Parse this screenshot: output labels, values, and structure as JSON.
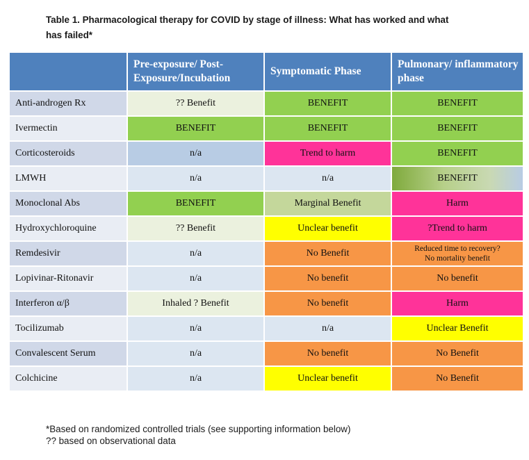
{
  "title_line1": "Table 1. Pharmacological therapy for COVID by stage of illness: What has worked and what",
  "title_line2": "has failed*",
  "colors": {
    "header": "#4f81bd",
    "label_dark": "#d0d8e8",
    "label_light": "#e9edf4",
    "benefit_green": "#92d050",
    "pale_green": "#ebf1de",
    "light_green": "#c4d79b",
    "harm_pink": "#ff3399",
    "yellow": "#ffff00",
    "orange": "#f79646",
    "blue": "#b8cce4",
    "light_blue": "#dce6f1"
  },
  "table": {
    "headers": [
      "",
      "Pre-exposure/ Post-Exposure/Incubation",
      "Symptomatic Phase",
      "Pulmonary/ inflammatory phase"
    ],
    "rows": [
      {
        "drug": "Anti-androgen Rx",
        "cells": [
          {
            "text": "?? Benefit",
            "bg": "#ebf1de"
          },
          {
            "text": "BENEFIT",
            "bg": "#92d050"
          },
          {
            "text": "BENEFIT",
            "bg": "#92d050"
          }
        ]
      },
      {
        "drug": "Ivermectin",
        "cells": [
          {
            "text": "BENEFIT",
            "bg": "#92d050"
          },
          {
            "text": "BENEFIT",
            "bg": "#92d050"
          },
          {
            "text": "BENEFIT",
            "bg": "#92d050"
          }
        ]
      },
      {
        "drug": "Corticosteroids",
        "cells": [
          {
            "text": "n/a",
            "bg": "#b8cce4"
          },
          {
            "text": "Trend to harm",
            "bg": "#ff3399"
          },
          {
            "text": "BENEFIT",
            "bg": "#92d050"
          }
        ]
      },
      {
        "drug": "LMWH",
        "cells": [
          {
            "text": "n/a",
            "bg": "#dce6f1"
          },
          {
            "text": "n/a",
            "bg": "#dce6f1"
          },
          {
            "text": "BENEFIT",
            "bg": "linear-gradient(to right, #7faa3c 0%, #b7d08a 40%, #c9d9b3 75%, #b8cce4 100%)"
          }
        ]
      },
      {
        "drug": "Monoclonal Abs",
        "cells": [
          {
            "text": "BENEFIT",
            "bg": "#92d050"
          },
          {
            "text": "Marginal Benefit",
            "bg": "#c4d79b"
          },
          {
            "text": "Harm",
            "bg": "#ff3399"
          }
        ]
      },
      {
        "drug": "Hydroxychloroquine",
        "cells": [
          {
            "text": "?? Benefit",
            "bg": "#ebf1de"
          },
          {
            "text": "Unclear benefit",
            "bg": "#ffff00"
          },
          {
            "text": "?Trend to harm",
            "bg": "#ff3399"
          }
        ]
      },
      {
        "drug": "Remdesivir",
        "cells": [
          {
            "text": "n/a",
            "bg": "#dce6f1"
          },
          {
            "text": "No Benefit",
            "bg": "#f79646"
          },
          {
            "text": "Reduced time to recovery?",
            "text2": "No mortality benefit",
            "bg": "#f79646"
          }
        ]
      },
      {
        "drug": "Lopivinar-Ritonavir",
        "cells": [
          {
            "text": "n/a",
            "bg": "#dce6f1"
          },
          {
            "text": "No benefit",
            "bg": "#f79646"
          },
          {
            "text": "No benefit",
            "bg": "#f79646"
          }
        ]
      },
      {
        "drug": "Interferon α/β",
        "cells": [
          {
            "text": "Inhaled ? Benefit",
            "bg": "#ebf1de"
          },
          {
            "text": "No benefit",
            "bg": "#f79646"
          },
          {
            "text": "Harm",
            "bg": "#ff3399"
          }
        ]
      },
      {
        "drug": "Tocilizumab",
        "cells": [
          {
            "text": "n/a",
            "bg": "#dce6f1"
          },
          {
            "text": "n/a",
            "bg": "#dce6f1"
          },
          {
            "text": "Unclear Benefit",
            "bg": "#ffff00"
          }
        ]
      },
      {
        "drug": "Convalescent Serum",
        "cells": [
          {
            "text": "n/a",
            "bg": "#dce6f1"
          },
          {
            "text": "No benefit",
            "bg": "#f79646"
          },
          {
            "text": "No Benefit",
            "bg": "#f79646"
          }
        ]
      },
      {
        "drug": "Colchicine",
        "cells": [
          {
            "text": "n/a",
            "bg": "#dce6f1"
          },
          {
            "text": "Unclear benefit",
            "bg": "#ffff00"
          },
          {
            "text": "No Benefit",
            "bg": "#f79646"
          }
        ]
      }
    ]
  },
  "footnote1": "*Based on randomized controlled trials (see supporting information below)",
  "footnote2": "?? based on observational data"
}
